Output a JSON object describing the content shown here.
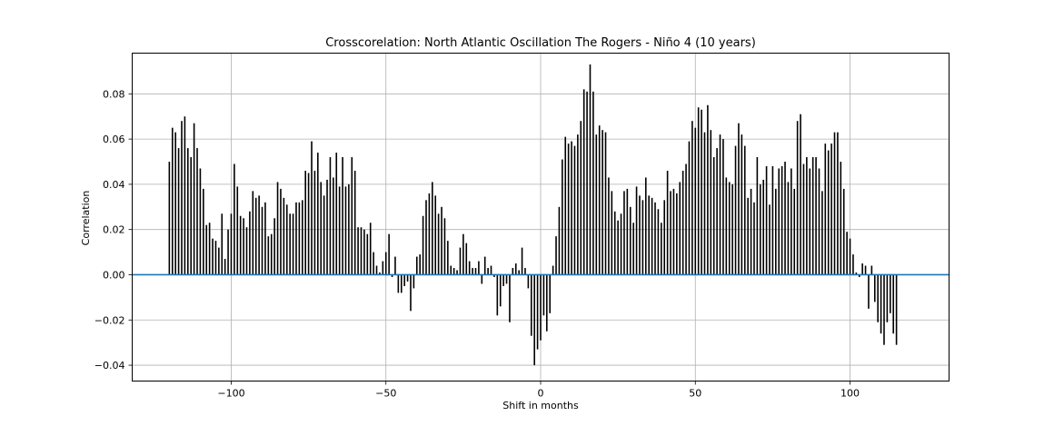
{
  "chart_data": {
    "type": "bar",
    "title": "Crosscorelation: North Atlantic Oscillation The Rogers - Niño 4 (10 years)",
    "xlabel": "Shift in months",
    "ylabel": "Correlation",
    "xlim": [
      -132,
      132
    ],
    "ylim": [
      -0.047,
      0.098
    ],
    "xticks": [
      -100,
      -50,
      0,
      50,
      100
    ],
    "xtick_labels": [
      "−100",
      "−50",
      "0",
      "50",
      "100"
    ],
    "yticks": [
      -0.04,
      -0.02,
      0.0,
      0.02,
      0.04,
      0.06,
      0.08
    ],
    "ytick_labels": [
      "−0.04",
      "−0.02",
      "0.00",
      "0.02",
      "0.04",
      "0.06",
      "0.08"
    ],
    "grid": true,
    "bar_color": "#000000",
    "baseline_color": "#1f77b4",
    "x_start": -120,
    "x_step": 1,
    "values": [
      0.05,
      0.065,
      0.063,
      0.056,
      0.068,
      0.07,
      0.056,
      0.052,
      0.067,
      0.056,
      0.047,
      0.038,
      0.022,
      0.023,
      0.016,
      0.015,
      0.012,
      0.027,
      0.007,
      0.02,
      0.027,
      0.049,
      0.039,
      0.026,
      0.025,
      0.021,
      0.028,
      0.037,
      0.034,
      0.035,
      0.03,
      0.032,
      0.017,
      0.018,
      0.025,
      0.041,
      0.038,
      0.034,
      0.031,
      0.027,
      0.027,
      0.032,
      0.032,
      0.033,
      0.046,
      0.045,
      0.059,
      0.046,
      0.054,
      0.041,
      0.035,
      0.042,
      0.052,
      0.043,
      0.054,
      0.039,
      0.052,
      0.039,
      0.04,
      0.052,
      0.046,
      0.021,
      0.021,
      0.02,
      0.018,
      0.023,
      0.01,
      0.004,
      0.001,
      0.006,
      0.01,
      0.018,
      -0.001,
      0.008,
      -0.008,
      -0.008,
      -0.005,
      -0.003,
      -0.016,
      -0.006,
      0.008,
      0.009,
      0.026,
      0.033,
      0.036,
      0.041,
      0.035,
      0.027,
      0.03,
      0.025,
      0.015,
      0.004,
      0.003,
      0.002,
      0.012,
      0.018,
      0.014,
      0.006,
      0.003,
      0.003,
      0.006,
      -0.004,
      0.008,
      0.003,
      0.004,
      -0.001,
      -0.018,
      -0.014,
      -0.005,
      -0.004,
      -0.021,
      0.003,
      0.005,
      0.002,
      0.012,
      0.003,
      -0.006,
      -0.027,
      -0.04,
      -0.033,
      -0.029,
      -0.018,
      -0.025,
      -0.017,
      0.004,
      0.017,
      0.03,
      0.051,
      0.061,
      0.058,
      0.059,
      0.057,
      0.062,
      0.068,
      0.082,
      0.081,
      0.093,
      0.081,
      0.062,
      0.066,
      0.064,
      0.063,
      0.043,
      0.037,
      0.028,
      0.024,
      0.027,
      0.037,
      0.038,
      0.03,
      0.023,
      0.039,
      0.035,
      0.033,
      0.043,
      0.035,
      0.034,
      0.032,
      0.029,
      0.023,
      0.033,
      0.046,
      0.037,
      0.038,
      0.036,
      0.041,
      0.046,
      0.049,
      0.059,
      0.068,
      0.065,
      0.074,
      0.073,
      0.063,
      0.075,
      0.064,
      0.052,
      0.056,
      0.062,
      0.06,
      0.043,
      0.041,
      0.04,
      0.057,
      0.067,
      0.062,
      0.057,
      0.034,
      0.038,
      0.032,
      0.052,
      0.04,
      0.042,
      0.048,
      0.031,
      0.048,
      0.038,
      0.047,
      0.048,
      0.05,
      0.041,
      0.047,
      0.038,
      0.068,
      0.071,
      0.049,
      0.052,
      0.047,
      0.052,
      0.052,
      0.047,
      0.037,
      0.058,
      0.055,
      0.058,
      0.063,
      0.063,
      0.05,
      0.038,
      0.019,
      0.016,
      0.009,
      0.001,
      -0.001,
      0.005,
      0.004,
      -0.015,
      0.004,
      -0.012,
      -0.021,
      -0.026,
      -0.031,
      -0.021,
      -0.017,
      -0.026,
      -0.031
    ]
  }
}
